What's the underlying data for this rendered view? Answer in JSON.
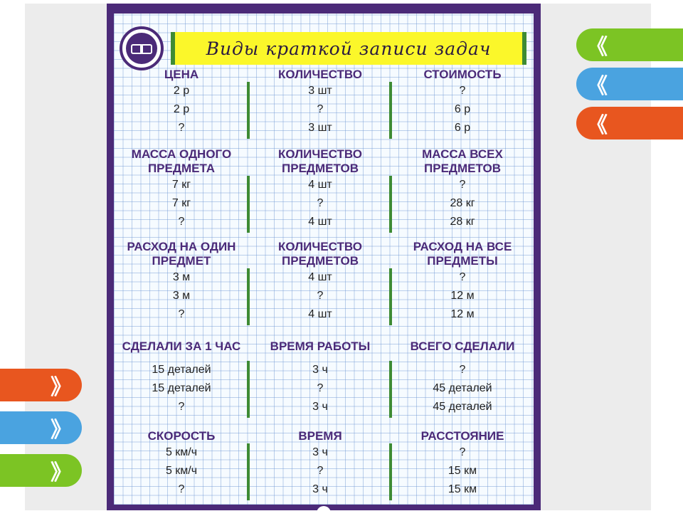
{
  "title": "Виды краткой записи задач",
  "logo": "owl-icon",
  "colors": {
    "frame": "#4b2a78",
    "banner": "#fbf72a",
    "divider": "#3e8b34"
  },
  "sections": [
    {
      "columns": [
        {
          "header": "ЦЕНА",
          "values": [
            "2 р",
            "2 р",
            "?"
          ]
        },
        {
          "header": "КОЛИЧЕСТВО",
          "values": [
            "3 шт",
            "?",
            "3 шт"
          ]
        },
        {
          "header": "СТОИМОСТЬ",
          "values": [
            "?",
            "6 р",
            "6 р"
          ]
        }
      ]
    },
    {
      "columns": [
        {
          "header": "МАССА ОДНОГО ПРЕДМЕТА",
          "values": [
            "7 кг",
            "7 кг",
            "?"
          ]
        },
        {
          "header": "КОЛИЧЕСТВО ПРЕДМЕТОВ",
          "values": [
            "4 шт",
            "?",
            "4 шт"
          ]
        },
        {
          "header": "МАССА ВСЕХ ПРЕДМЕТОВ",
          "values": [
            "?",
            "28 кг",
            "28 кг"
          ]
        }
      ]
    },
    {
      "columns": [
        {
          "header": "РАСХОД НА ОДИН ПРЕДМЕТ",
          "values": [
            "3 м",
            "3 м",
            "?"
          ]
        },
        {
          "header": "КОЛИЧЕСТВО ПРЕДМЕТОВ",
          "values": [
            "4 шт",
            "?",
            "4 шт"
          ]
        },
        {
          "header": "РАСХОД НА ВСЕ ПРЕДМЕТЫ",
          "values": [
            "?",
            "12 м",
            "12 м"
          ]
        }
      ]
    },
    {
      "columns": [
        {
          "header": "СДЕЛАЛИ ЗА 1 ЧАС",
          "values": [
            "15 деталей",
            "15 деталей",
            "?"
          ]
        },
        {
          "header": "ВРЕМЯ РАБОТЫ",
          "values": [
            "3 ч",
            "?",
            "3 ч"
          ]
        },
        {
          "header": "ВСЕГО СДЕЛАЛИ",
          "values": [
            "?",
            "45 деталей",
            "45 деталей"
          ]
        }
      ]
    },
    {
      "columns": [
        {
          "header": "СКОРОСТЬ",
          "values": [
            "5 км/ч",
            "5 км/ч",
            "?"
          ]
        },
        {
          "header": "ВРЕМЯ",
          "values": [
            "3 ч",
            "?",
            "3 ч"
          ]
        },
        {
          "header": "РАССТОЯНИЕ",
          "values": [
            "?",
            "15 км",
            "15 км"
          ]
        }
      ]
    }
  ],
  "ribbons": {
    "glyph": "《",
    "right": [
      "#7cc424",
      "#4aa3e0",
      "#e8561f"
    ],
    "left": [
      "#e8561f",
      "#4aa3e0",
      "#7cc424"
    ]
  }
}
